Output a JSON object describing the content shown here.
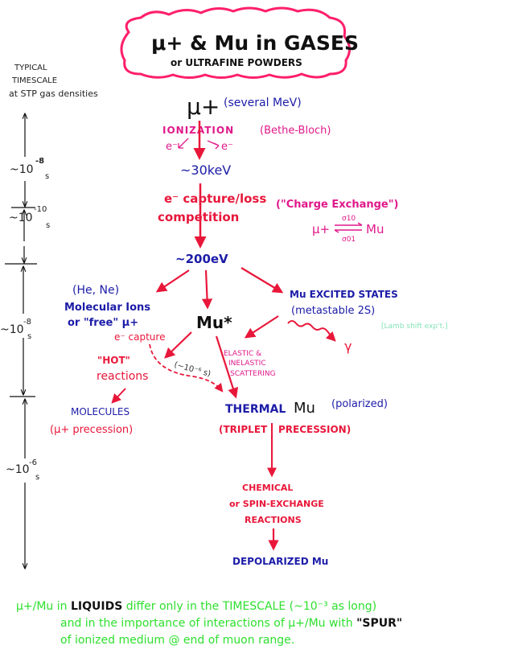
{
  "colors": {
    "red": "#e8173a",
    "blue": "#1c1ca8",
    "magenta": "#e0198a",
    "black": "#111111",
    "green": "#2ee02e",
    "teal": "#86e3b8",
    "cloud": "#ff1f6a"
  },
  "title": {
    "main": "μ+ & Mu in GASES",
    "sub": "or ULTRAFINE POWDERS"
  },
  "timescale": {
    "heading": [
      "TYPICAL",
      "TIMESCALE",
      "at STP gas densities"
    ],
    "labels": [
      {
        "base": "~10",
        "exp": "-8",
        "unit": "s"
      },
      {
        "base": "~10",
        "exp": "-10",
        "unit": "s"
      },
      {
        "base": "~10",
        "exp": "-8",
        "unit": "s"
      },
      {
        "base": "~10",
        "exp": "-6",
        "unit": "s"
      }
    ]
  },
  "nodes": {
    "muon": "μ+",
    "muon_energy": "(several MeV)",
    "ionization": "IONIZATION",
    "bethe_bloch": "(Bethe-Bloch)",
    "e_left": "e⁻",
    "e_right": "e⁻",
    "kev": "~30keV",
    "capture_loss": "e⁻ capture/loss",
    "competition": "competition",
    "charge_exchange": "(\"Charge Exchange\")",
    "cx_left": "μ+",
    "cx_sigma_top": "σ10",
    "cx_sigma_bottom": "σ01",
    "cx_right": "Mu",
    "ev": "~200eV",
    "he_ne": "(He, Ne)",
    "molecular_ions": "Molecular Ions",
    "free_mu": "or \"free\" μ+",
    "mu_star": "Mu*",
    "excited": "Mu EXCITED STATES",
    "metastable": "(metastable 2S)",
    "lamb": "[Lamb shift exp't.]",
    "gamma": "γ",
    "e_capture": "e⁻ capture",
    "hot": "\"HOT\"",
    "reactions_hot": "reactions",
    "dashed_time": "(~10⁻⁶ s)",
    "scatter": [
      "ELASTIC &",
      "INELASTIC",
      "SCATTERING"
    ],
    "molecules": "MOLECULES",
    "mu_precession": "(μ+ precession)",
    "thermal": "THERMAL",
    "thermal_mu": "Mu",
    "polarized": "(polarized)",
    "triplet": "(TRIPLET",
    "precession": "PRECESSION)",
    "chemical": [
      "CHEMICAL",
      "or SPIN-EXCHANGE",
      "REACTIONS"
    ],
    "depolarized": "DEPOLARIZED Mu"
  },
  "footer": {
    "line1_a": "μ+/Mu in ",
    "line1_b": "LIQUIDS",
    "line1_c": " differ only in the TIMESCALE (~10⁻³ as long)",
    "line2_a": "and in the importance of interactions of μ+/Mu with ",
    "line2_b": "\"SPUR\"",
    "line3": "of ionized medium @ end of muon range."
  }
}
